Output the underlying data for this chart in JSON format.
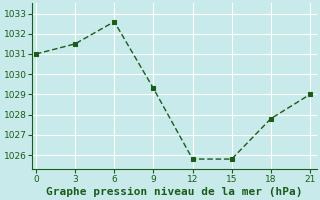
{
  "x": [
    0,
    3,
    6,
    9,
    12,
    15,
    18,
    21
  ],
  "y": [
    1031.0,
    1031.5,
    1032.6,
    1029.3,
    1025.8,
    1025.8,
    1027.8,
    1029.0
  ],
  "line_color": "#1a5c1a",
  "marker_color": "#1a5c1a",
  "background_color": "#c8eaea",
  "grid_color": "#ffffff",
  "xlabel": "Graphe pression niveau de la mer (hPa)",
  "xlabel_color": "#1a5c1a",
  "ylabel_ticks": [
    1026,
    1027,
    1028,
    1029,
    1030,
    1031,
    1032,
    1033
  ],
  "xticks": [
    0,
    3,
    6,
    9,
    12,
    15,
    18,
    21
  ],
  "ylim": [
    1025.3,
    1033.5
  ],
  "xlim": [
    -0.3,
    21.5
  ],
  "tick_color": "#1a5c1a",
  "tick_fontsize": 6.5,
  "xlabel_fontsize": 8,
  "spine_color": "#1a5c1a",
  "line_width": 1.0,
  "marker_size": 2.5
}
